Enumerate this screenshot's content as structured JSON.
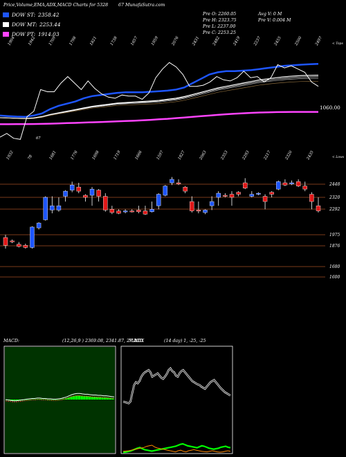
{
  "header": {
    "title": "Price,Volume,EMA,ADX,MACD Charts for 5328",
    "source": "67 MunafaSutra.com"
  },
  "legend": [
    {
      "label": "DOW ST:",
      "value": "2358.42",
      "color": "#1e56ff"
    },
    {
      "label": "DOW MT:",
      "value": "2253.44",
      "color": "#ffffff"
    },
    {
      "label": "DOW PT:",
      "value": "1914.03",
      "color": "#ff44ff"
    }
  ],
  "stats": {
    "prev_open": "Pre   O: 2260.05",
    "prev_high": "Pre   H: 2323.75",
    "prev_low": "Pre   L: 2237.00",
    "prev_close": "Pre   C: 2253.25",
    "avg_vol": "Avg V: 0   M",
    "prev_vol": "Pre   V: 0.004   M"
  },
  "ema_panel": {
    "top_tag": "< Tops",
    "price_label": "1060.00",
    "top_labels": [
      "1904",
      "1942",
      "1709",
      "1798",
      "1821",
      "1738",
      "1657",
      "1959",
      "2076",
      "2431",
      "2482",
      "2419",
      "2237",
      "2455",
      "2500",
      "2497"
    ],
    "bottom_labels": [
      "67"
    ]
  },
  "candle_panel": {
    "low_tag": "< Lows",
    "top_labels": [
      "1932",
      "78",
      "1681",
      "1776",
      "1698",
      "1719",
      "1666",
      "1597",
      "1827",
      "2063",
      "2353",
      "2293",
      "2217",
      "2320",
      "2435"
    ],
    "levels": [
      "2448",
      "2320",
      "2292",
      "1975",
      "1876",
      "1680",
      "1600"
    ]
  },
  "macd_panel": {
    "title": "MACD:",
    "params": "(12,26,9 ) 2369.08,  2341.87,  27.20",
    "hist_label": "MACD"
  },
  "adx_panel": {
    "title": "ADX",
    "params": "(14  day) 1,  -25,  -25"
  },
  "colors": {
    "bull": "#1e56ff",
    "bear": "#e01818",
    "grid": "#7a3a1a",
    "ema_short": "#1e56ff",
    "ema_mid": "#ffffff",
    "ema_long": "#ff44ff",
    "adx_plus": "#00ff00",
    "adx_minus": "#ff8800",
    "panel_border": "#ffffff"
  },
  "chart_data": [
    {
      "type": "candlestick",
      "title": "",
      "levels": [
        2448,
        2320,
        2292,
        1975,
        1876,
        1680,
        1600
      ],
      "series": [
        {
          "o": 1950,
          "h": 1975,
          "l": 1850,
          "c": 1880
        },
        {
          "o": 1920,
          "h": 1932,
          "l": 1900,
          "c": 1915
        },
        {
          "o": 1890,
          "h": 1910,
          "l": 1860,
          "c": 1870
        },
        {
          "o": 1880,
          "h": 1895,
          "l": 1850,
          "c": 1860
        },
        {
          "o": 1860,
          "h": 2080,
          "l": 1850,
          "c": 2070
        },
        {
          "o": 2060,
          "h": 2130,
          "l": 2040,
          "c": 2120
        },
        {
          "o": 2160,
          "h": 2330,
          "l": 2150,
          "c": 2320
        },
        {
          "o": 2280,
          "h": 2330,
          "l": 2240,
          "c": 2300
        },
        {
          "o": 2280,
          "h": 2320,
          "l": 2260,
          "c": 2300
        },
        {
          "o": 2330,
          "h": 2390,
          "l": 2310,
          "c": 2380
        },
        {
          "o": 2390,
          "h": 2470,
          "l": 2370,
          "c": 2440
        },
        {
          "o": 2420,
          "h": 2460,
          "l": 2360,
          "c": 2380
        },
        {
          "o": 2340,
          "h": 2350,
          "l": 2310,
          "c": 2320
        },
        {
          "o": 2340,
          "h": 2420,
          "l": 2300,
          "c": 2400
        },
        {
          "o": 2390,
          "h": 2400,
          "l": 2310,
          "c": 2330
        },
        {
          "o": 2330,
          "h": 2360,
          "l": 2260,
          "c": 2280
        },
        {
          "o": 2290,
          "h": 2300,
          "l": 2230,
          "c": 2250
        },
        {
          "o": 2270,
          "h": 2290,
          "l": 2230,
          "c": 2240
        },
        {
          "o": 2260,
          "h": 2290,
          "l": 2240,
          "c": 2270
        },
        {
          "o": 2270,
          "h": 2290,
          "l": 2250,
          "c": 2260
        },
        {
          "o": 2280,
          "h": 2300,
          "l": 2240,
          "c": 2260
        },
        {
          "o": 2270,
          "h": 2300,
          "l": 2220,
          "c": 2230
        },
        {
          "o": 2260,
          "h": 2310,
          "l": 2250,
          "c": 2290
        },
        {
          "o": 2300,
          "h": 2360,
          "l": 2290,
          "c": 2350
        },
        {
          "o": 2340,
          "h": 2440,
          "l": 2330,
          "c": 2430
        },
        {
          "o": 2460,
          "h": 2510,
          "l": 2440,
          "c": 2490
        },
        {
          "o": 2460,
          "h": 2490,
          "l": 2440,
          "c": 2450
        },
        {
          "o": 2420,
          "h": 2430,
          "l": 2360,
          "c": 2380
        },
        {
          "o": 2310,
          "h": 2330,
          "l": 2250,
          "c": 2270
        },
        {
          "o": 2280,
          "h": 2310,
          "l": 2240,
          "c": 2270
        },
        {
          "o": 2250,
          "h": 2290,
          "l": 2230,
          "c": 2280
        },
        {
          "o": 2300,
          "h": 2330,
          "l": 2280,
          "c": 2310
        },
        {
          "o": 2320,
          "h": 2380,
          "l": 2300,
          "c": 2360
        },
        {
          "o": 2340,
          "h": 2360,
          "l": 2320,
          "c": 2330
        },
        {
          "o": 2350,
          "h": 2380,
          "l": 2300,
          "c": 2320
        },
        {
          "o": 2370,
          "h": 2380,
          "l": 2330,
          "c": 2350
        },
        {
          "o": 2460,
          "h": 2500,
          "l": 2400,
          "c": 2410
        },
        {
          "o": 2330,
          "h": 2380,
          "l": 2320,
          "c": 2350
        },
        {
          "o": 2360,
          "h": 2370,
          "l": 2340,
          "c": 2360
        },
        {
          "o": 2330,
          "h": 2350,
          "l": 2290,
          "c": 2310
        },
        {
          "o": 2370,
          "h": 2380,
          "l": 2320,
          "c": 2350
        },
        {
          "o": 2400,
          "h": 2480,
          "l": 2390,
          "c": 2470
        },
        {
          "o": 2460,
          "h": 2490,
          "l": 2430,
          "c": 2440
        },
        {
          "o": 2450,
          "h": 2480,
          "l": 2440,
          "c": 2460
        },
        {
          "o": 2470,
          "h": 2490,
          "l": 2420,
          "c": 2430
        },
        {
          "o": 2430,
          "h": 2470,
          "l": 2380,
          "c": 2400
        },
        {
          "o": 2350,
          "h": 2370,
          "l": 2290,
          "c": 2310
        },
        {
          "o": 2300,
          "h": 2320,
          "l": 2250,
          "c": 2270
        }
      ]
    },
    {
      "type": "line",
      "title": "",
      "series": [
        {
          "name": "DOW ST",
          "values": [
            1880,
            1875,
            1870,
            1868,
            1880,
            1900,
            1940,
            1970,
            1990,
            2010,
            2040,
            2060,
            2070,
            2080,
            2090,
            2095,
            2095,
            2095,
            2100,
            2105,
            2110,
            2120,
            2140,
            2180,
            2220,
            2260,
            2280,
            2290,
            2290,
            2295,
            2300,
            2310,
            2320,
            2330,
            2340,
            2345,
            2350,
            2355,
            2358
          ]
        },
        {
          "name": "DOW MT",
          "values": [
            1860,
            1858,
            1855,
            1853,
            1858,
            1870,
            1890,
            1905,
            1920,
            1935,
            1950,
            1965,
            1975,
            1985,
            1995,
            2000,
            2005,
            2010,
            2015,
            2020,
            2030,
            2040,
            2055,
            2075,
            2095,
            2115,
            2135,
            2150,
            2165,
            2180,
            2195,
            2210,
            2220,
            2230,
            2238,
            2245,
            2250,
            2252,
            2253
          ]
        },
        {
          "name": "DOW PT",
          "values": [
            1800,
            1800,
            1801,
            1801,
            1802,
            1803,
            1805,
            1807,
            1810,
            1812,
            1815,
            1818,
            1820,
            1823,
            1826,
            1829,
            1832,
            1836,
            1840,
            1845,
            1850,
            1856,
            1862,
            1868,
            1874,
            1880,
            1886,
            1892,
            1897,
            1901,
            1905,
            1908,
            1910,
            1912,
            1913,
            1914,
            1914,
            1914,
            1914
          ]
        }
      ]
    },
    {
      "type": "bar",
      "title": "",
      "series": [
        {
          "name": "MACD",
          "values": [
            -0.02,
            -0.03,
            -0.04,
            -0.05,
            -0.05,
            -0.04,
            -0.03,
            -0.02,
            -0.01,
            0,
            0.01,
            0.01,
            0.02,
            0.02,
            0.01,
            0.01,
            0,
            0,
            -0.01,
            -0.01,
            0,
            0.01,
            0.03,
            0.05,
            0.08,
            0.11,
            0.13,
            0.14,
            0.14,
            0.13,
            0.12,
            0.12,
            0.11,
            0.1,
            0.1,
            0.09,
            0.09,
            0.08,
            0.08,
            0.07,
            0.06,
            0.05
          ]
        }
      ]
    },
    {
      "type": "line",
      "title": "",
      "series": [
        {
          "name": "ADX",
          "values": [
            25,
            24,
            23,
            22,
            25,
            40,
            55,
            60,
            58,
            62,
            70,
            75,
            78,
            80,
            82,
            78,
            70,
            72,
            74,
            76,
            72,
            68,
            66,
            70,
            75,
            82,
            85,
            80,
            78,
            72,
            70,
            76,
            80,
            82,
            78,
            74,
            70,
            66,
            62,
            60,
            58,
            56,
            55,
            52,
            50,
            48,
            52,
            56,
            60,
            62,
            64,
            60,
            56,
            52,
            48,
            45,
            42,
            40,
            38,
            36
          ]
        },
        {
          "name": "+DI",
          "values": [
            5,
            6,
            8,
            10,
            14,
            18,
            22,
            25,
            20,
            16,
            14,
            12,
            10,
            12,
            14,
            16,
            18,
            20,
            22,
            24,
            26,
            28,
            30,
            34,
            38,
            40,
            36,
            32,
            30,
            28,
            26,
            24,
            28,
            32,
            30,
            26,
            22,
            20,
            18,
            20,
            22,
            26,
            28,
            30,
            26,
            24
          ]
        },
        {
          "name": "-DI",
          "values": [
            8,
            9,
            10,
            12,
            14,
            16,
            18,
            20,
            22,
            26,
            28,
            30,
            24,
            20,
            18,
            16,
            14,
            12,
            10,
            8,
            6,
            10,
            12,
            8,
            6,
            10,
            12,
            14,
            12,
            10,
            8,
            7,
            6,
            8,
            10,
            8,
            6,
            5,
            6,
            8,
            10,
            8
          ]
        }
      ]
    }
  ]
}
